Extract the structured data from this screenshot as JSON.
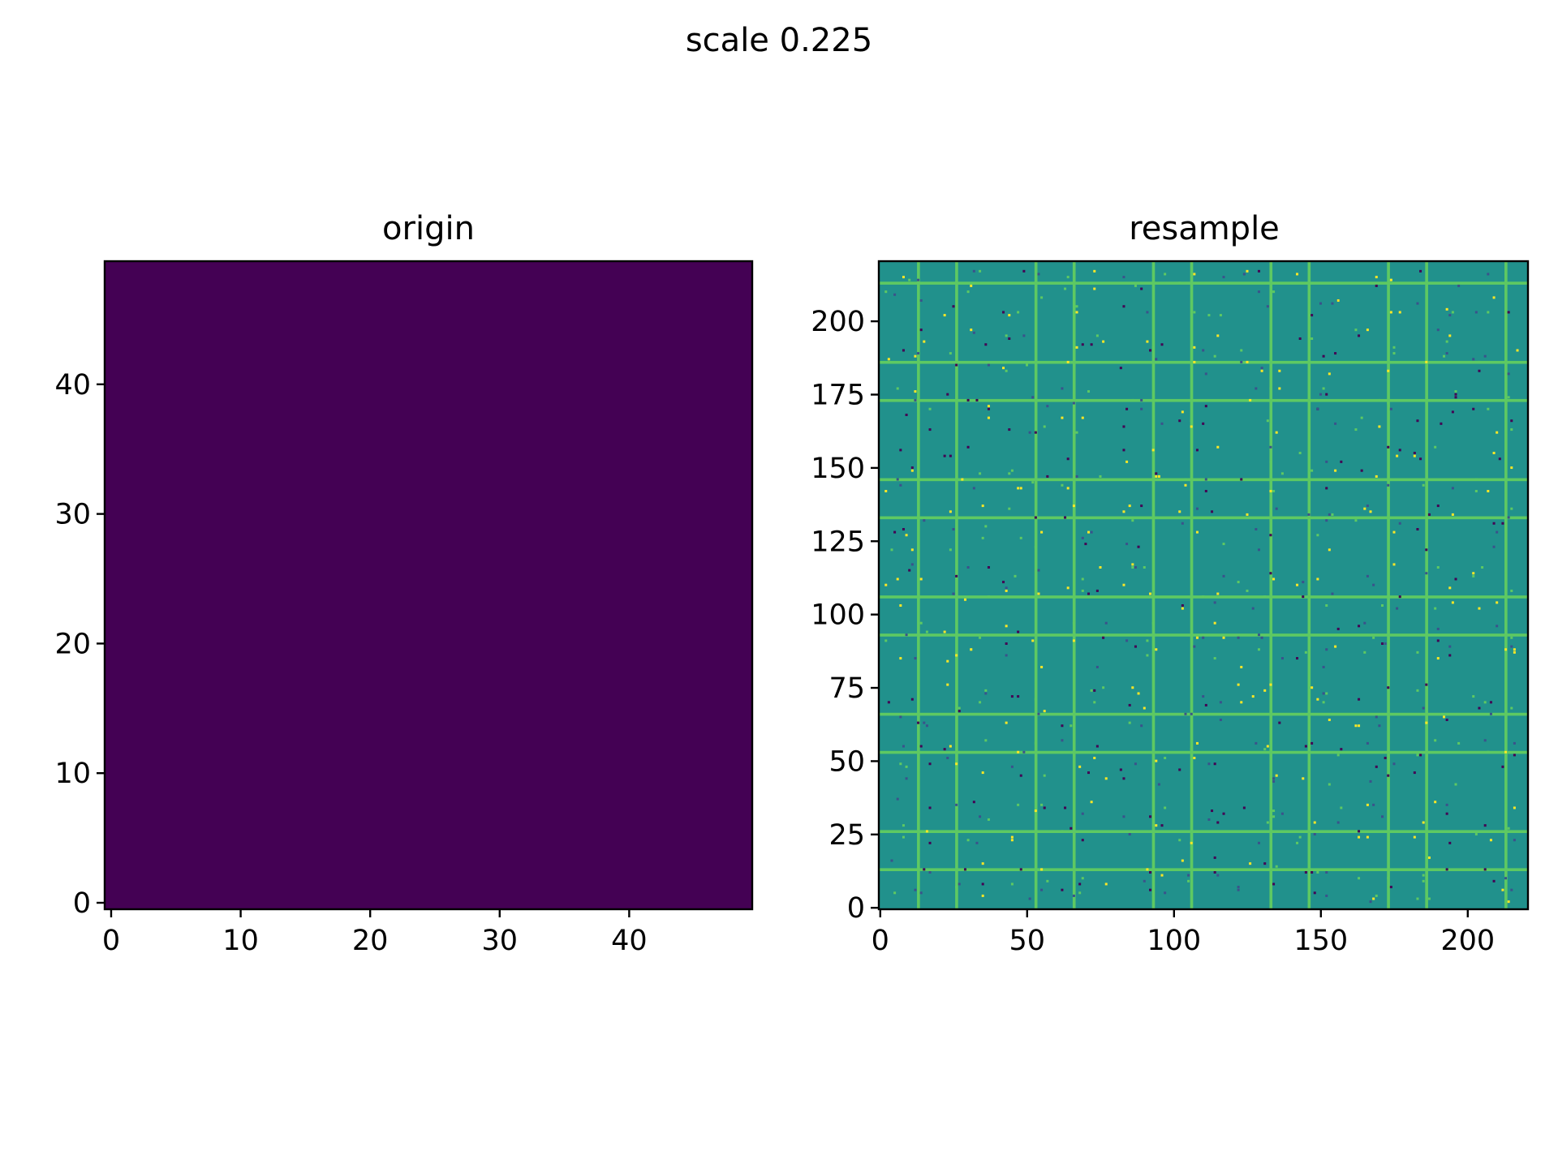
{
  "figure": {
    "suptitle": "scale 0.225"
  },
  "chart_data": [
    {
      "type": "heatmap",
      "title": "origin",
      "xlabel": "",
      "ylabel": "",
      "grid": false,
      "xlim": [
        -0.5,
        49.5
      ],
      "ylim": [
        -0.5,
        49.5
      ],
      "xticks": [
        0,
        10,
        20,
        30,
        40
      ],
      "yticks": [
        0,
        10,
        20,
        30,
        40
      ],
      "image_size": [
        50,
        50
      ],
      "fill_color": "#440154",
      "values_description": "uniform"
    },
    {
      "type": "heatmap",
      "title": "resample",
      "xlabel": "",
      "ylabel": "",
      "grid": false,
      "xlim": [
        -0.5,
        220.5
      ],
      "ylim": [
        -0.5,
        220.5
      ],
      "xticks": [
        0,
        50,
        100,
        150,
        200
      ],
      "yticks": [
        0,
        25,
        50,
        75,
        100,
        125,
        150,
        175,
        200
      ],
      "image_size": [
        221,
        221
      ],
      "background_color": "#21918c",
      "line_color": "#5ec962",
      "bright_color": "#fde725",
      "dark_color": "#440154",
      "mid_color": "#3b528b",
      "grid_line_positions": [
        13,
        26,
        53,
        66,
        93,
        106,
        133,
        146,
        173,
        186,
        213
      ]
    }
  ]
}
